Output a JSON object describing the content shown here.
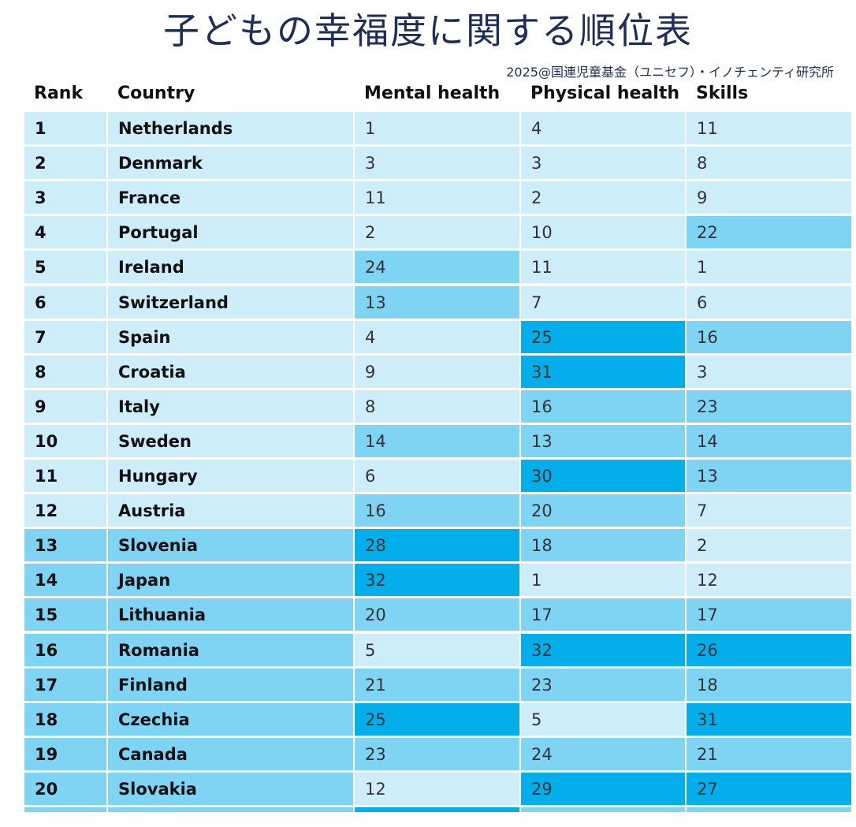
{
  "title": "子どもの幸福度に関する順位表",
  "credit": "2025@国連児童基金（ユニセフ）・イノチェンティ研究所",
  "colors": {
    "light": "#cdeef9",
    "mid": "#7fd4f4",
    "dark": "#03aeea",
    "title": "#1b2f5a"
  },
  "chart_data": {
    "type": "table",
    "columns": [
      "Rank",
      "Country",
      "Mental health",
      "Physical health",
      "Skills"
    ],
    "rows": [
      {
        "rank": "1",
        "country": "Netherlands",
        "mental": "1",
        "physical": "4",
        "skills": "11"
      },
      {
        "rank": "2",
        "country": "Denmark",
        "mental": "3",
        "physical": "3",
        "skills": "8"
      },
      {
        "rank": "3",
        "country": "France",
        "mental": "11",
        "physical": "2",
        "skills": "9"
      },
      {
        "rank": "4",
        "country": "Portugal",
        "mental": "2",
        "physical": "10",
        "skills": "22"
      },
      {
        "rank": "5",
        "country": "Ireland",
        "mental": "24",
        "physical": "11",
        "skills": "1"
      },
      {
        "rank": "6",
        "country": "Switzerland",
        "mental": "13",
        "physical": "7",
        "skills": "6"
      },
      {
        "rank": "7",
        "country": "Spain",
        "mental": "4",
        "physical": "25",
        "skills": "16"
      },
      {
        "rank": "8",
        "country": "Croatia",
        "mental": "9",
        "physical": "31",
        "skills": "3"
      },
      {
        "rank": "9",
        "country": "Italy",
        "mental": "8",
        "physical": "16",
        "skills": "23"
      },
      {
        "rank": "10",
        "country": "Sweden",
        "mental": "14",
        "physical": "13",
        "skills": "14"
      },
      {
        "rank": "11",
        "country": "Hungary",
        "mental": "6",
        "physical": "30",
        "skills": "13"
      },
      {
        "rank": "12",
        "country": "Austria",
        "mental": "16",
        "physical": "20",
        "skills": "7"
      },
      {
        "rank": "13",
        "country": "Slovenia",
        "mental": "28",
        "physical": "18",
        "skills": "2"
      },
      {
        "rank": "14",
        "country": "Japan",
        "mental": "32",
        "physical": "1",
        "skills": "12"
      },
      {
        "rank": "15",
        "country": "Lithuania",
        "mental": "20",
        "physical": "17",
        "skills": "17"
      },
      {
        "rank": "16",
        "country": "Romania",
        "mental": "5",
        "physical": "32",
        "skills": "26"
      },
      {
        "rank": "17",
        "country": "Finland",
        "mental": "21",
        "physical": "23",
        "skills": "18"
      },
      {
        "rank": "18",
        "country": "Czechia",
        "mental": "25",
        "physical": "5",
        "skills": "31"
      },
      {
        "rank": "19",
        "country": "Canada",
        "mental": "23",
        "physical": "24",
        "skills": "21"
      },
      {
        "rank": "20",
        "country": "Slovakia",
        "mental": "12",
        "physical": "29",
        "skills": "27"
      }
    ]
  }
}
